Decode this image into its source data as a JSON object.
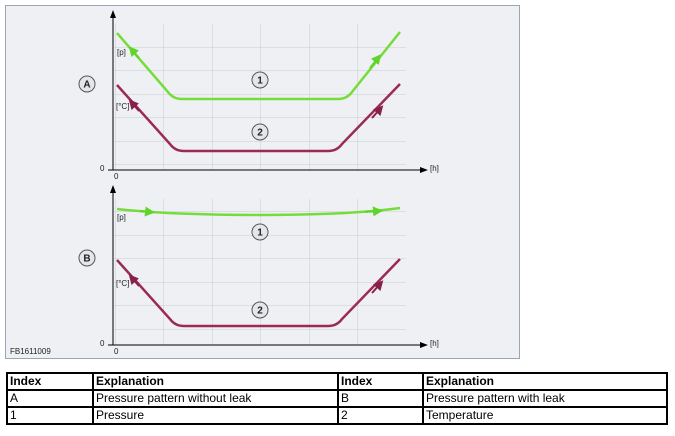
{
  "figure": {
    "id": "FB1611009",
    "panels": [
      {
        "label": "A",
        "pressure_axis": "[p]",
        "temperature_axis": "[°C]",
        "y_origin": "0",
        "x_origin": "0",
        "time_axis": "[h]",
        "curve_1": "1",
        "curve_2": "2"
      },
      {
        "label": "B",
        "pressure_axis": "[p]",
        "temperature_axis": "[°C]",
        "y_origin": "0",
        "x_origin": "0",
        "time_axis": "[h]",
        "curve_1": "1",
        "curve_2": "2"
      }
    ]
  },
  "table": {
    "header": [
      "Index",
      "Explanation",
      "Index",
      "Explanation"
    ],
    "rows": [
      [
        "A",
        "Pressure pattern without leak",
        "B",
        "Pressure pattern with leak"
      ],
      [
        "1",
        "Pressure",
        "2",
        "Temperature"
      ]
    ]
  }
}
